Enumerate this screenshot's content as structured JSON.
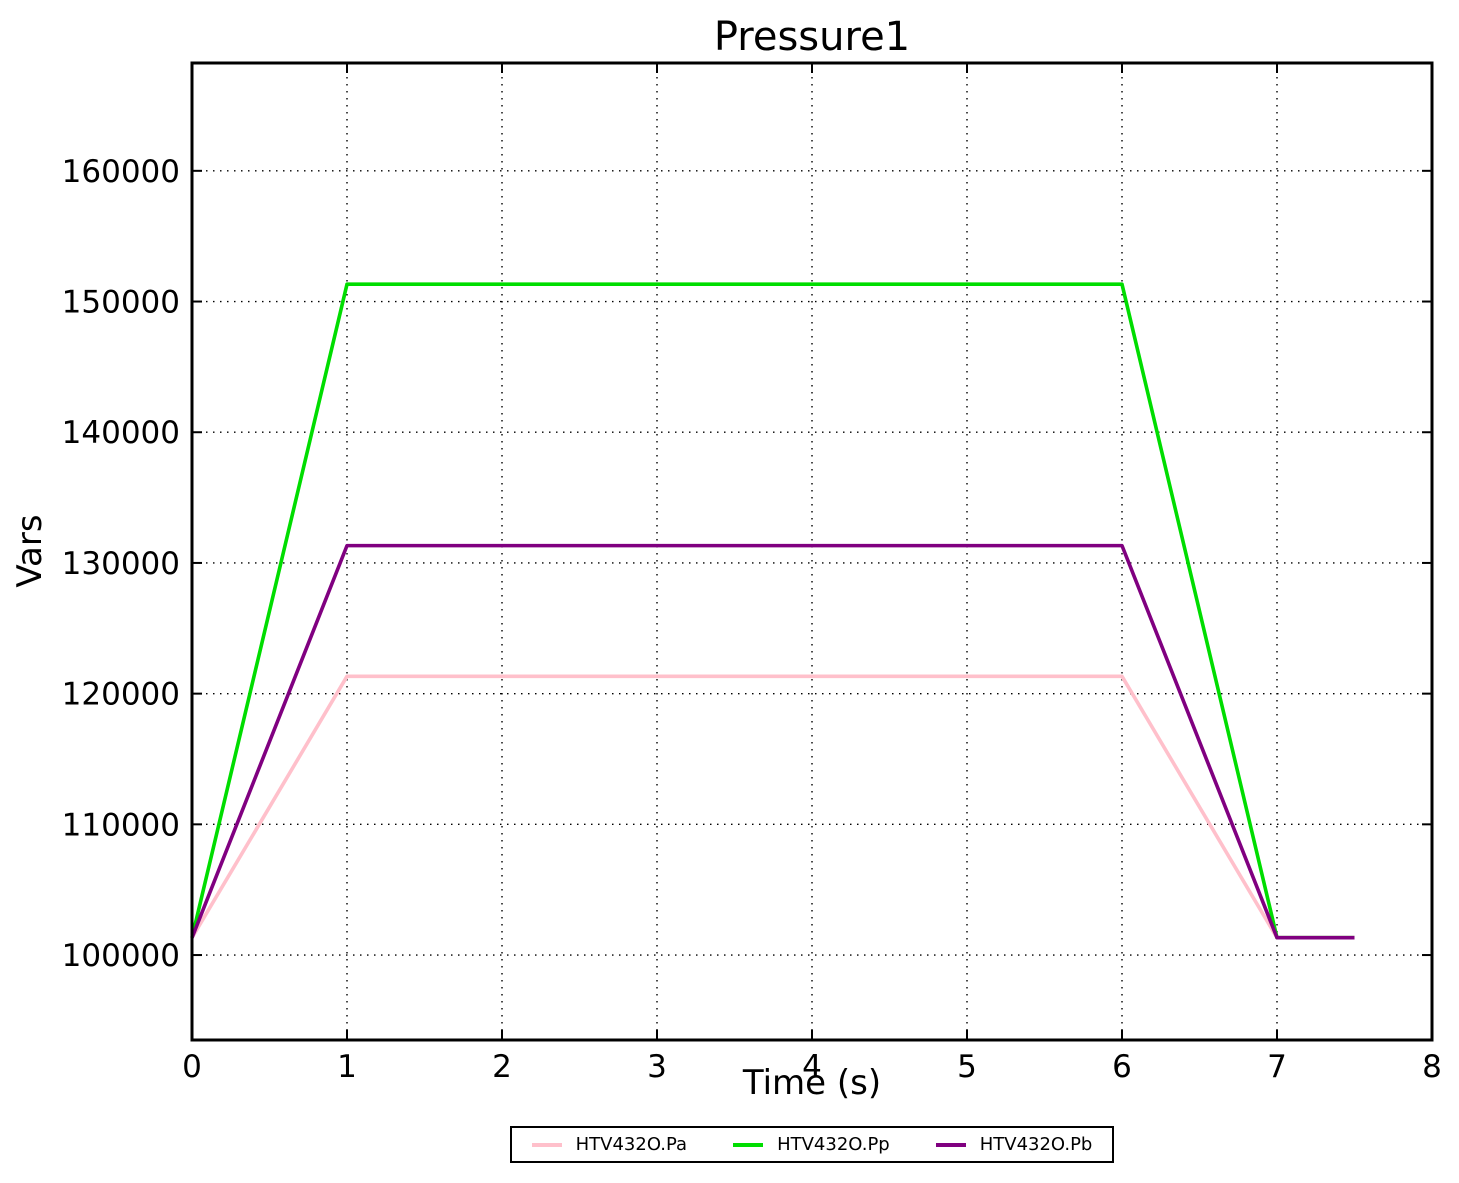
{
  "title": "Pressure1",
  "chart_data": {
    "type": "line",
    "title": "Pressure1",
    "xlabel": "Time (s)",
    "ylabel": "Vars",
    "xlim": [
      0,
      8
    ],
    "ylim": [
      93500,
      168250
    ],
    "xticks": [
      0,
      1,
      2,
      3,
      4,
      5,
      6,
      7,
      8
    ],
    "yticks": [
      100000,
      110000,
      120000,
      130000,
      140000,
      150000,
      160000
    ],
    "grid": "dotted",
    "legend_position": "bottom-center",
    "series": [
      {
        "name": "HTV432O.Pa",
        "color": "#FFC0CB",
        "points": [
          [
            0,
            101325
          ],
          [
            1,
            121325
          ],
          [
            6,
            121325
          ],
          [
            7,
            101325
          ],
          [
            7.5,
            101325
          ]
        ]
      },
      {
        "name": "HTV432O.Pp",
        "color": "#00DD00",
        "points": [
          [
            0,
            101325
          ],
          [
            1,
            151325
          ],
          [
            6,
            151325
          ],
          [
            7,
            101325
          ],
          [
            7.5,
            101325
          ]
        ]
      },
      {
        "name": "HTV432O.Pb",
        "color": "#800080",
        "points": [
          [
            0,
            101325
          ],
          [
            1,
            131325
          ],
          [
            6,
            131325
          ],
          [
            7,
            101325
          ],
          [
            7.5,
            101325
          ]
        ]
      }
    ]
  }
}
